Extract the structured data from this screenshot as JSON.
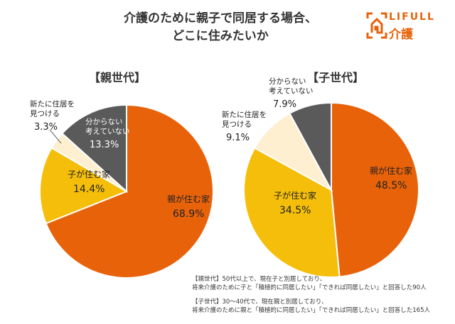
{
  "title_lines": [
    "介護のために親子で同居する場合、",
    "どこに住みたいか"
  ],
  "logo": {
    "line1": "LIFULL",
    "line2": "介護",
    "color": "#E8620A"
  },
  "colors": {
    "orange": "#E8620A",
    "yellow": "#F5BE0B",
    "cream": "#FDEFD0",
    "gray": "#5A5A5A"
  },
  "chart_data": [
    {
      "type": "pie",
      "title": "【親世代】",
      "start": "top",
      "direction": "clockwise",
      "slices": [
        {
          "label": [
            "親が住む家"
          ],
          "value": 68.9,
          "value_label": "68.9%",
          "color": "#E8620A",
          "text_color": "#222"
        },
        {
          "label": [
            "子が住む家"
          ],
          "value": 14.4,
          "value_label": "14.4%",
          "color": "#F5BE0B",
          "text_color": "#222"
        },
        {
          "label": [
            "新たに住居を",
            "見つける"
          ],
          "value": 3.3,
          "value_label": "3.3%",
          "color": "#FDEFD0",
          "text_color": "#222"
        },
        {
          "label": [
            "分からない",
            "考えていない"
          ],
          "value": 13.3,
          "value_label": "13.3%",
          "color": "#5A5A5A",
          "text_color": "#fff"
        }
      ]
    },
    {
      "type": "pie",
      "title": "【子世代】",
      "start": "top",
      "direction": "clockwise",
      "slices": [
        {
          "label": [
            "親が住む家"
          ],
          "value": 48.5,
          "value_label": "48.5%",
          "color": "#E8620A",
          "text_color": "#222"
        },
        {
          "label": [
            "子が住む家"
          ],
          "value": 34.5,
          "value_label": "34.5%",
          "color": "#F5BE0B",
          "text_color": "#222"
        },
        {
          "label": [
            "新たに住居を",
            "見つける"
          ],
          "value": 9.1,
          "value_label": "9.1%",
          "color": "#FDEFD0",
          "text_color": "#222"
        },
        {
          "label": [
            "分からない",
            "考えていない"
          ],
          "value": 7.9,
          "value_label": "7.9%",
          "color": "#5A5A5A",
          "text_color": "#222"
        }
      ]
    }
  ],
  "notes": [
    [
      "【親世代】50代以上で、現在子と別居しており、",
      "将来介護のために子と「積極的に同居したい」「できれば同居したい」と回答した90人"
    ],
    [
      "【子世代】30～40代で、現在親と別居しており、",
      "将来介護のために親と「積極的に同居したい」「できれば同居したい」と回答した165人"
    ]
  ]
}
